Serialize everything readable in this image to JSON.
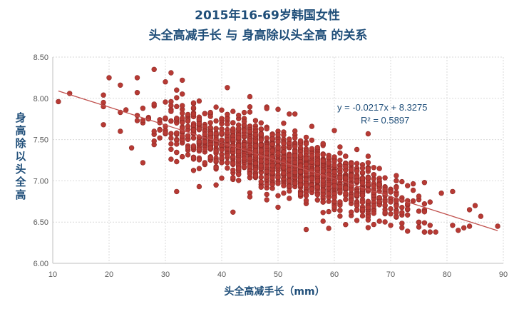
{
  "chart_data": {
    "type": "scatter",
    "title": [
      "2015年16-69岁韩国女性",
      "头全高减手长 与 身高除以头全高 的关系"
    ],
    "xlabel": "头全高减手长（mm）",
    "ylabel": "身高除以头全高",
    "xlim": [
      10,
      90
    ],
    "ylim": [
      6.0,
      8.5
    ],
    "x_ticks": [
      "10",
      "20",
      "30",
      "40",
      "50",
      "60",
      "70",
      "80",
      "90"
    ],
    "y_ticks": [
      "6.00",
      "6.50",
      "7.00",
      "7.50",
      "8.00",
      "8.50"
    ],
    "grid": "vertical dashed",
    "legend": "none",
    "point_color": "#b73a34",
    "trendline": {
      "type": "linear",
      "slope": -0.0217,
      "intercept": 8.3275,
      "equation_label": "y = -0.0217x + 8.3275",
      "r2_label": "R² = 0.5897",
      "color": "#c0504d"
    },
    "points": [
      [
        11,
        7.96
      ],
      [
        13,
        8.06
      ],
      [
        19,
        8.04
      ],
      [
        19,
        7.95
      ],
      [
        19,
        7.9
      ],
      [
        19,
        7.68
      ],
      [
        20,
        8.25
      ],
      [
        22,
        8.16
      ],
      [
        22,
        7.83
      ],
      [
        22,
        7.6
      ],
      [
        23,
        7.86
      ],
      [
        24,
        7.4
      ],
      [
        25,
        8.25
      ],
      [
        25,
        8.07
      ],
      [
        26,
        7.88
      ],
      [
        26,
        7.22
      ],
      [
        28,
        8.35
      ],
      [
        28,
        7.6
      ],
      [
        29,
        7.52
      ],
      [
        30,
        8.2
      ],
      [
        31,
        8.31
      ],
      [
        31,
        7.96
      ],
      [
        32,
        8.1
      ],
      [
        32,
        6.87
      ],
      [
        33,
        8.22
      ],
      [
        35,
        7.28
      ],
      [
        36,
        6.93
      ],
      [
        39,
        6.95
      ],
      [
        41,
        8.13
      ],
      [
        42,
        6.62
      ],
      [
        45,
        8.02
      ],
      [
        48,
        6.77
      ],
      [
        50,
        6.68
      ],
      [
        52,
        7.81
      ],
      [
        53,
        7.81
      ],
      [
        55,
        6.41
      ],
      [
        56,
        7.66
      ],
      [
        58,
        6.51
      ],
      [
        60,
        7.61
      ],
      [
        61,
        7.04
      ],
      [
        62,
        6.47
      ],
      [
        64,
        6.52
      ],
      [
        66,
        7.57
      ],
      [
        68,
        7.15
      ],
      [
        68,
        6.51
      ],
      [
        70,
        6.46
      ],
      [
        72,
        6.99
      ],
      [
        73,
        6.39
      ],
      [
        75,
        6.44
      ],
      [
        76,
        6.98
      ],
      [
        77,
        6.46
      ],
      [
        79,
        6.85
      ],
      [
        81,
        6.87
      ],
      [
        81,
        6.46
      ],
      [
        82,
        6.4
      ],
      [
        83,
        6.43
      ],
      [
        84,
        6.45
      ],
      [
        84,
        6.65
      ],
      [
        85,
        6.7
      ],
      [
        86,
        6.57
      ],
      [
        89,
        6.45
      ]
    ],
    "bulk_cluster": {
      "x_range": [
        22,
        80
      ],
      "residual_sd": 0.16,
      "count": 1900,
      "seed": 20150116
    }
  }
}
